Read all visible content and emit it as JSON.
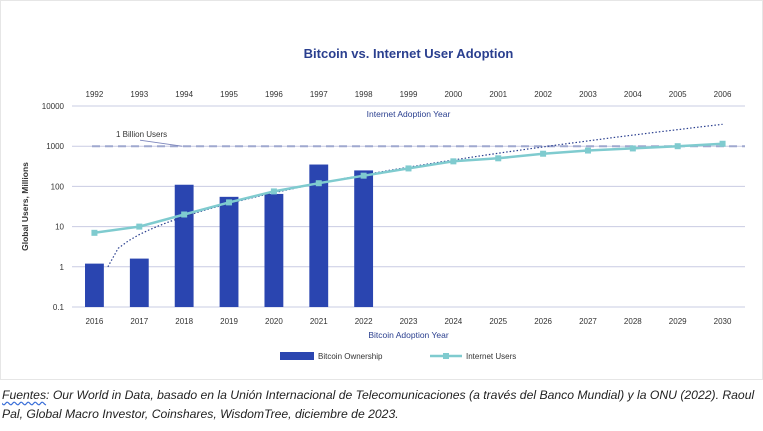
{
  "chart_data": {
    "type": "bar",
    "title": "Bitcoin vs. Internet User Adoption",
    "ylabel": "Global Users, Millions",
    "xlabel_bottom": "Bitcoin Adoption Year",
    "xlabel_top": "Internet Adoption Year",
    "yscale": "log",
    "ylim": [
      0.1,
      10000
    ],
    "y_ticks": [
      "0.1",
      "1",
      "10",
      "100",
      "1000",
      "10000"
    ],
    "categories_bottom": [
      "2016",
      "2017",
      "2018",
      "2019",
      "2020",
      "2021",
      "2022",
      "2023",
      "2024",
      "2025",
      "2026",
      "2027",
      "2028",
      "2029",
      "2030"
    ],
    "categories_top": [
      "1992",
      "1993",
      "1994",
      "1995",
      "1996",
      "1997",
      "1998",
      "1999",
      "2000",
      "2001",
      "2002",
      "2003",
      "2004",
      "2005",
      "2006"
    ],
    "series": [
      {
        "name": "Bitcoin Ownership",
        "kind": "bar",
        "color": "#2a45b0",
        "values": [
          1.2,
          1.6,
          110,
          55,
          65,
          350,
          250,
          null,
          null,
          null,
          null,
          null,
          null,
          null,
          null
        ]
      },
      {
        "name": "Internet Users",
        "kind": "line",
        "color": "#7fcbcf",
        "values": [
          7,
          10,
          20,
          40,
          75,
          120,
          185,
          280,
          420,
          500,
          650,
          780,
          880,
          1000,
          1150
        ]
      }
    ],
    "trendline": {
      "style": "dotted",
      "color": "#2a3f8f",
      "x_start": 0.3,
      "y_start": 1,
      "x_end": 14,
      "y_end": 3500
    },
    "reference_line": {
      "value": 1000,
      "label": "1 Billion Users",
      "color": "#9fa8cf"
    },
    "legend": {
      "placement": "bottom-center"
    }
  },
  "source_note": {
    "label": "Fuentes",
    "text": ": Our World in Data, basado en la Unión Internacional de Telecomunicaciones (a través del Banco Mundial) y la ONU (2022). Raoul Pal, Global Macro Investor, Coinshares, WisdomTree, diciembre de 2023."
  }
}
